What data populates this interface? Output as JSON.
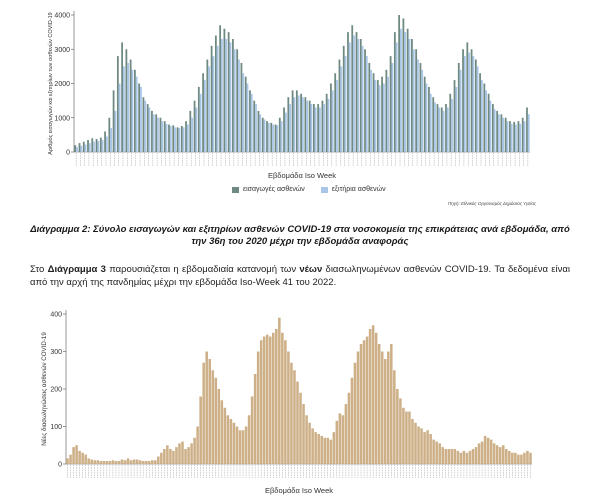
{
  "chart1": {
    "chart_data": {
      "type": "bar",
      "title": "",
      "xlabel": "Εβδομάδα Iso Week",
      "ylabel": "Αριθμός εισαγωγών και εξιτηρίων των ασθενών COVID-19",
      "ylim": [
        0,
        4000
      ],
      "yticks": [
        0,
        1000,
        2000,
        3000,
        4000
      ],
      "legend_position": "bottom",
      "series": [
        {
          "name": "εισαγωγές ασθενών",
          "color": "#6f8a83",
          "values": [
            200,
            260,
            300,
            350,
            400,
            380,
            420,
            600,
            1000,
            1800,
            2800,
            3200,
            3000,
            2700,
            2400,
            2000,
            1600,
            1400,
            1200,
            1100,
            1000,
            900,
            800,
            780,
            720,
            760,
            900,
            1200,
            1500,
            1900,
            2300,
            2700,
            3100,
            3400,
            3700,
            3600,
            3500,
            3300,
            3000,
            2600,
            2200,
            1800,
            1500,
            1200,
            1000,
            900,
            850,
            800,
            1000,
            1300,
            1600,
            1800,
            1800,
            1700,
            1600,
            1500,
            1400,
            1400,
            1500,
            1700,
            2000,
            2300,
            2700,
            3100,
            3500,
            3700,
            3500,
            3300,
            3000,
            2600,
            2300,
            2100,
            2200,
            2400,
            2800,
            3500,
            4000,
            3900,
            3600,
            3300,
            3000,
            2600,
            2200,
            1900,
            1600,
            1400,
            1300,
            1400,
            1700,
            2100,
            2600,
            3000,
            3200,
            3000,
            2700,
            2300,
            2000,
            1700,
            1400,
            1200,
            1100,
            1000,
            900,
            880,
            900,
            1000,
            1300
          ]
        },
        {
          "name": "εξιτήρια ασθενών",
          "color": "#a9c6e8",
          "values": [
            150,
            180,
            220,
            260,
            300,
            320,
            350,
            450,
            700,
            1200,
            2000,
            2500,
            2600,
            2400,
            2200,
            1900,
            1500,
            1300,
            1100,
            1000,
            900,
            820,
            760,
            720,
            700,
            720,
            800,
            1000,
            1300,
            1700,
            2100,
            2500,
            2800,
            3100,
            3300,
            3300,
            3200,
            3000,
            2700,
            2300,
            2000,
            1700,
            1400,
            1100,
            950,
            850,
            800,
            780,
            900,
            1150,
            1400,
            1600,
            1650,
            1600,
            1500,
            1400,
            1300,
            1300,
            1400,
            1550,
            1800,
            2100,
            2500,
            2800,
            3200,
            3400,
            3300,
            3100,
            2800,
            2400,
            2100,
            1950,
            2000,
            2200,
            2600,
            3200,
            3600,
            3500,
            3300,
            3000,
            2700,
            2400,
            2000,
            1700,
            1450,
            1300,
            1200,
            1300,
            1550,
            1900,
            2400,
            2800,
            2900,
            2800,
            2500,
            2100,
            1800,
            1500,
            1250,
            1100,
            1000,
            900,
            820,
            800,
            820,
            900,
            1100
          ]
        }
      ]
    },
    "legend": {
      "admissions_label": "εισαγωγές ασθενών",
      "discharges_label": "εξιτήρια ασθενών"
    },
    "source": "Πηγή: Εθνικός Οργανισμός Δημόσιας Υγείας"
  },
  "caption": "Διάγραμμα 2: Σύνολο εισαγωγών και εξιτηρίων ασθενών COVID-19 στα νοσοκομεία της επικράτειας ανά εβδομάδα, από την 36η του 2020 μέχρι την εβδομάδα αναφοράς",
  "paragraph": {
    "p1": "Στο ",
    "p1_bold": "Διάγραμμα 3",
    "p2": " παρουσιάζεται η εβδομαδιαία κατανομή των ",
    "p2_bold": "νέων",
    "p3": " διασωληνωμένων ασθενών COVID-19.  Τα δεδομένα είναι από την αρχή της πανδημίας μέχρι την εβδομάδα Iso-Week 41 του 2022."
  },
  "chart2": {
    "chart_data": {
      "type": "bar",
      "title": "",
      "xlabel": "Εβδομάδα Iso Week",
      "ylabel": "Νέες διασωληνώσεις ασθενών COVID-19",
      "ylim": [
        0,
        400
      ],
      "yticks": [
        0,
        100,
        200,
        300,
        400
      ],
      "color": "#cdb088",
      "values": [
        15,
        25,
        45,
        50,
        35,
        30,
        25,
        15,
        12,
        10,
        10,
        8,
        8,
        8,
        8,
        10,
        8,
        8,
        12,
        10,
        15,
        10,
        12,
        12,
        10,
        8,
        8,
        8,
        10,
        10,
        20,
        30,
        40,
        50,
        40,
        35,
        45,
        55,
        60,
        40,
        45,
        55,
        70,
        100,
        180,
        270,
        300,
        280,
        250,
        230,
        200,
        170,
        150,
        130,
        120,
        110,
        100,
        90,
        90,
        100,
        130,
        180,
        240,
        300,
        330,
        340,
        345,
        340,
        350,
        360,
        390,
        350,
        330,
        300,
        270,
        250,
        220,
        190,
        160,
        130,
        110,
        95,
        85,
        80,
        75,
        70,
        70,
        65,
        85,
        115,
        135,
        130,
        160,
        190,
        230,
        270,
        300,
        320,
        330,
        340,
        360,
        370,
        350,
        320,
        300,
        280,
        300,
        320,
        250,
        200,
        175,
        150,
        140,
        140,
        120,
        110,
        100,
        95,
        85,
        90,
        80,
        65,
        60,
        55,
        45,
        40,
        40,
        40,
        40,
        35,
        30,
        35,
        30,
        35,
        40,
        45,
        55,
        60,
        75,
        70,
        65,
        55,
        50,
        45,
        50,
        40,
        35,
        30,
        30,
        25,
        25,
        30,
        35,
        30
      ]
    }
  }
}
